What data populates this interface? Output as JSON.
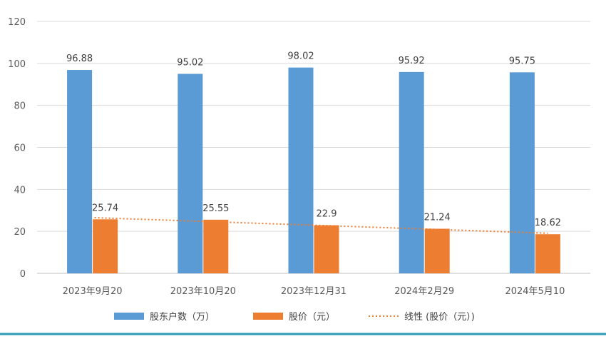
{
  "chart_data": {
    "type": "bar",
    "categories": [
      "2023年9月20",
      "2023年10月20",
      "2023年12月31",
      "2024年2月29",
      "2024年5月10"
    ],
    "series": [
      {
        "name": "股东户数（万）",
        "values": [
          96.88,
          95.02,
          98.02,
          95.92,
          95.75
        ],
        "color": "#5b9bd5"
      },
      {
        "name": "股价（元）",
        "values": [
          25.74,
          25.55,
          22.9,
          21.24,
          18.62
        ],
        "color": "#ed7d31"
      }
    ],
    "trendline": {
      "name": "线性 (股价（元）)",
      "of_series": "股价（元）",
      "style": "dotted",
      "color": "#ed7d31"
    },
    "ylim": [
      0,
      120
    ],
    "yticks": [
      0,
      20,
      40,
      60,
      80,
      100,
      120
    ],
    "ytick_labels": [
      "0",
      "20",
      "40",
      "60",
      "80",
      "100",
      "120"
    ],
    "grid": true,
    "legend_position": "bottom",
    "data_labels": true,
    "title": "",
    "xlabel": "",
    "ylabel": ""
  },
  "colors": {
    "frame_bottom": "#2e9bb5",
    "grid": "#d9d9d9",
    "axis": "#bfbfbf"
  }
}
